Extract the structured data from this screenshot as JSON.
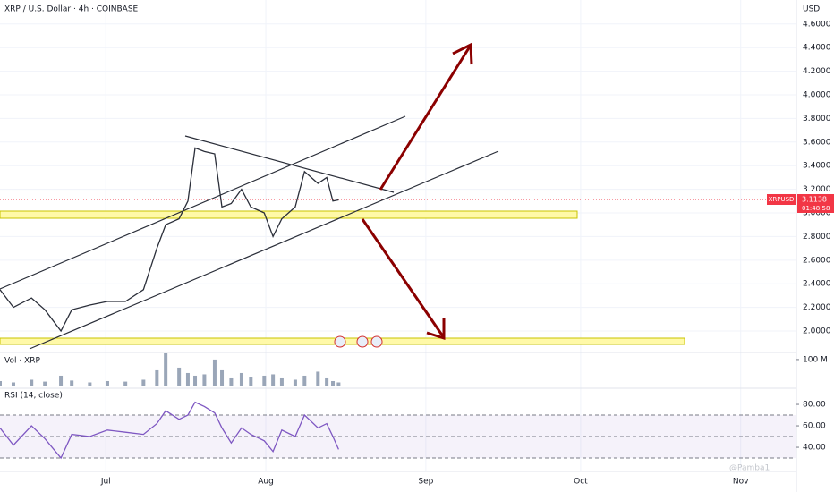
{
  "chart_data": [
    {
      "type": "line",
      "title": "XRP / U.S. Dollar · 4h · COINBASE",
      "y_label": "USD",
      "color": "#2a2e39",
      "x": [
        -20.5,
        -17.9,
        -14.4,
        -11.8,
        -8.7,
        -6.6,
        -3.1,
        0.3,
        3.8,
        7.3,
        9.9,
        11.6,
        14.2,
        15.9,
        17.3,
        19.1,
        21.1,
        22.5,
        24.3,
        26.3,
        28.1,
        30.7,
        32.4,
        34.1,
        36.7,
        38.5,
        41.1,
        42.8,
        44.0,
        45.1
      ],
      "values": [
        2.35,
        2.2,
        2.28,
        2.18,
        2.0,
        2.18,
        2.22,
        2.25,
        2.25,
        2.35,
        2.7,
        2.9,
        2.95,
        3.1,
        3.55,
        3.52,
        3.5,
        3.05,
        3.08,
        3.2,
        3.05,
        3.0,
        2.8,
        2.95,
        3.05,
        3.35,
        3.25,
        3.3,
        3.1,
        3.11
      ],
      "xlim": [
        -20.5,
        133.8
      ],
      "xticks": [
        {
          "value": 0,
          "label": "Jul"
        },
        {
          "value": 31,
          "label": "Aug"
        },
        {
          "value": 62,
          "label": "Sep"
        },
        {
          "value": 92,
          "label": "Oct"
        },
        {
          "value": 123,
          "label": "Nov"
        }
      ],
      "ylim": [
        1.826,
        4.803
      ],
      "yticks": [
        {
          "value": 2.0,
          "label": "2.0000"
        },
        {
          "value": 2.2,
          "label": "2.2000"
        },
        {
          "value": 2.4,
          "label": "2.4000"
        },
        {
          "value": 2.6,
          "label": "2.6000"
        },
        {
          "value": 2.8,
          "label": "2.8000"
        },
        {
          "value": 3.0,
          "label": "3.0000"
        },
        {
          "value": 3.2,
          "label": "3.2000"
        },
        {
          "value": 3.4,
          "label": "3.4000"
        },
        {
          "value": 3.6,
          "label": "3.6000"
        },
        {
          "value": 3.8,
          "label": "3.8000"
        },
        {
          "value": 4.0,
          "label": "4.0000"
        },
        {
          "value": 4.2,
          "label": "4.2000"
        },
        {
          "value": 4.4,
          "label": "4.4000"
        },
        {
          "value": 4.6,
          "label": "4.6000"
        }
      ],
      "grid": true,
      "symbol_label": "XRPUSD",
      "last_price": 3.1138,
      "countdown": "01:48:58",
      "price_color": "#f23645"
    },
    {
      "type": "bar",
      "title": "Vol · XRP",
      "color": "#9aa6b8",
      "values": [
        20,
        15,
        25,
        18,
        40,
        22,
        15,
        20,
        18,
        25,
        60,
        123,
        70,
        50,
        40,
        45,
        100,
        60,
        30,
        50,
        35,
        40,
        45,
        30,
        25,
        40,
        55,
        30,
        20,
        15
      ],
      "ylim": [
        0,
        123
      ],
      "yticks": [
        {
          "value": 100,
          "label": "100 M"
        }
      ]
    },
    {
      "type": "line",
      "title": "RSI (14, close)",
      "color": "#7e57c2",
      "values": [
        58,
        42,
        60,
        48,
        30,
        52,
        50,
        56,
        54,
        52,
        62,
        74,
        66,
        70,
        82,
        78,
        72,
        58,
        44,
        58,
        52,
        46,
        36,
        56,
        50,
        70,
        58,
        62,
        50,
        38
      ],
      "ylim": [
        19.2,
        94.2
      ],
      "yticks": [
        {
          "value": 40,
          "label": "40.00"
        },
        {
          "value": 60,
          "label": "60.00"
        },
        {
          "value": 80,
          "label": "80.00"
        }
      ],
      "levels": [
        30,
        50,
        70
      ]
    }
  ],
  "watermark": "@Pamba1"
}
